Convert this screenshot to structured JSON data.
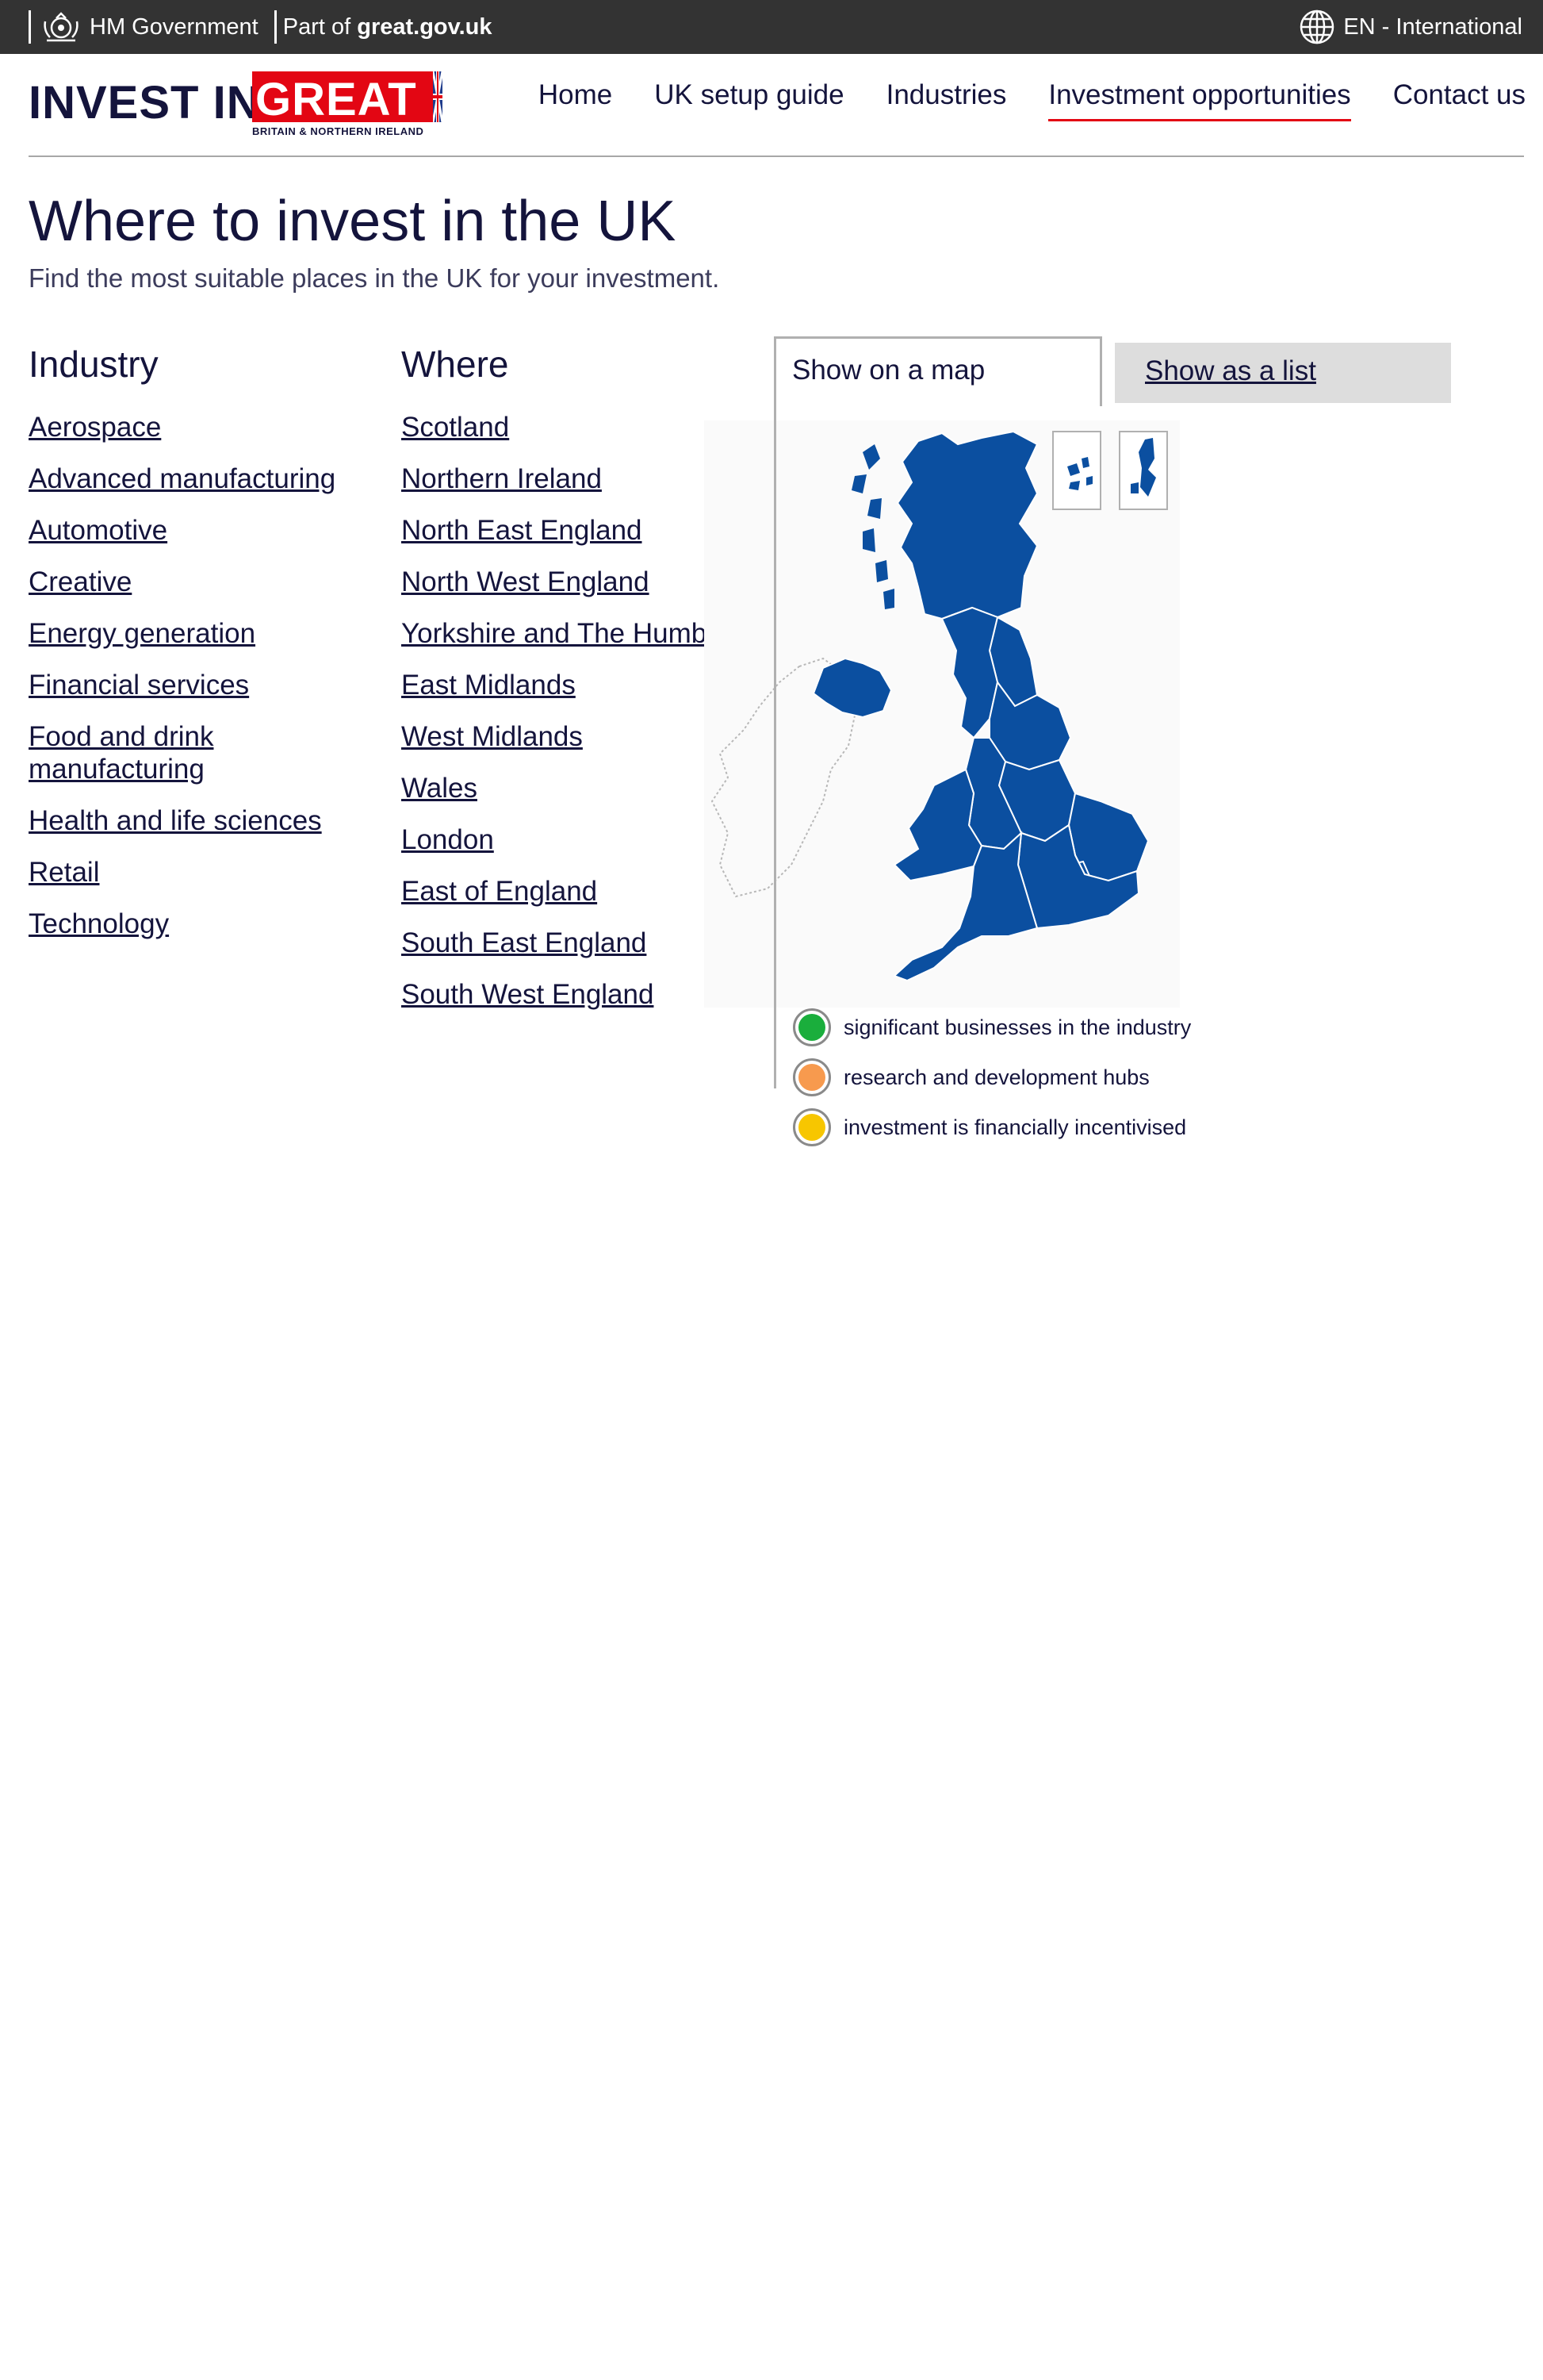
{
  "govbar": {
    "hm_label": "HM Government",
    "part_of_prefix": "Part of",
    "part_of_site": "great.gov.uk",
    "language": "EN - International"
  },
  "logo": {
    "invest_in": "INVEST IN",
    "great": "GREAT",
    "tagline": "BRITAIN & NORTHERN IRELAND"
  },
  "nav": {
    "items": [
      {
        "label": "Home"
      },
      {
        "label": "UK setup guide"
      },
      {
        "label": "Industries"
      },
      {
        "label": "Investment opportunities",
        "active": true
      },
      {
        "label": "Contact us"
      }
    ]
  },
  "page": {
    "title": "Where to invest in the UK",
    "subtitle": "Find the most suitable places in the UK for your investment."
  },
  "industry": {
    "heading": "Industry",
    "items": [
      "Aerospace",
      "Advanced manufacturing",
      "Automotive",
      "Creative",
      "Energy generation",
      "Financial services",
      "Food and drink manufacturing",
      "Health and life sciences",
      "Retail",
      "Technology"
    ]
  },
  "where": {
    "heading": "Where",
    "items": [
      "Scotland",
      "Northern Ireland",
      "North East England",
      "North West England",
      "Yorkshire and The Humber",
      "East Midlands",
      "West Midlands",
      "Wales",
      "London",
      "East of England",
      "South East England",
      "South West England"
    ]
  },
  "tabs": {
    "map": "Show on a map",
    "list": "Show as a list"
  },
  "legend": {
    "items": [
      {
        "label": "significant businesses in the industry",
        "color": "#1aae3c"
      },
      {
        "label": "research and development hubs",
        "color": "#f79a4e"
      },
      {
        "label": "investment is financially incentivised",
        "color": "#f7c600"
      }
    ]
  },
  "colors": {
    "map_fill": "#0b4fa0",
    "accent_red": "#e30613",
    "navy_text": "#14143c"
  }
}
